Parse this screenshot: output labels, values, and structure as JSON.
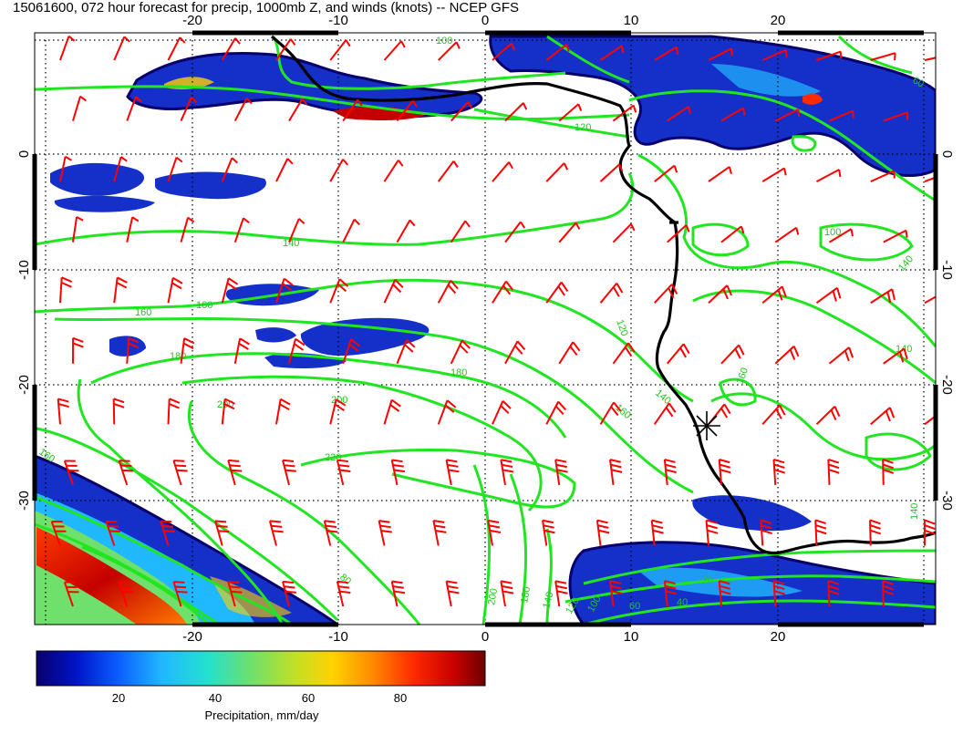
{
  "title": "15061600, 072 hour forecast for precip, 1000mb Z, and winds (knots) -- NCEP GFS",
  "map": {
    "lon_range": [
      -30,
      30
    ],
    "lat_range": [
      -40,
      10
    ],
    "lon_ticks": [
      -20,
      -10,
      0,
      10,
      20
    ],
    "lat_ticks": [
      0,
      -10,
      -20,
      -30
    ],
    "grid_style": "dotted",
    "coastline_color": "#000000",
    "contour_color": "#22e522",
    "barb_color": "#ff0000",
    "height_contour_labels": [
      "100",
      "120",
      "120",
      "140",
      "140",
      "140",
      "160",
      "160",
      "160",
      "180",
      "180",
      "200",
      "200",
      "200",
      "220",
      "180",
      "160",
      "140",
      "160",
      "100",
      "140",
      "140",
      "120",
      "100",
      "80",
      "60",
      "40",
      "20",
      "60"
    ],
    "station_marker": {
      "lon": 15,
      "lat": -24,
      "symbol": "asterisk"
    }
  },
  "colorbar": {
    "label": "Precipitation, mm/day",
    "ticks": [
      "20",
      "40",
      "60",
      "80"
    ],
    "range": [
      0,
      100
    ],
    "colors": [
      "#08006b",
      "#0015c8",
      "#0a5cff",
      "#20b8ff",
      "#23e0d0",
      "#6fe06b",
      "#c4e025",
      "#ffd200",
      "#ff8a00",
      "#ff2a00",
      "#c80000",
      "#6e0000"
    ]
  }
}
